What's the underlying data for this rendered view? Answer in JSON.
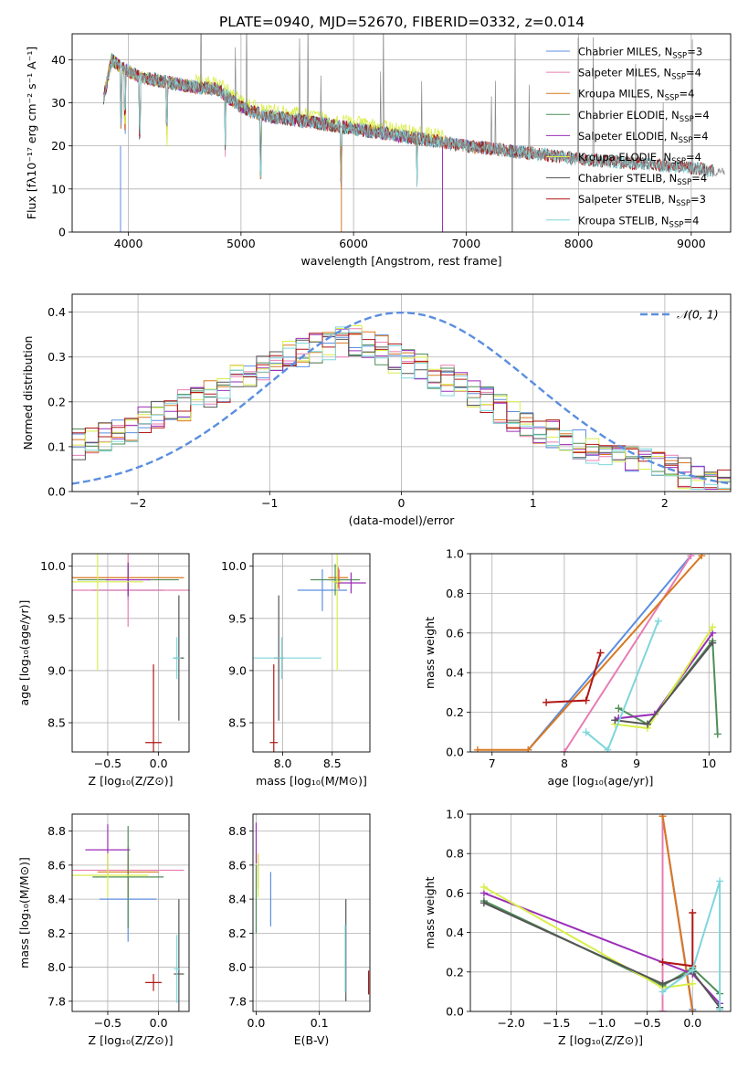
{
  "figure": {
    "title": "PLATE=0940, MJD=52670, FIBERID=0332, z=0.014"
  },
  "models": [
    {
      "name": "Chabrier MILES",
      "nssp": "3",
      "color": "#5b8ee0"
    },
    {
      "name": "Salpeter MILES",
      "nssp": "4",
      "color": "#e87db3"
    },
    {
      "name": "Kroupa MILES",
      "nssp": "4",
      "color": "#d9781f"
    },
    {
      "name": "Chabrier ELODIE",
      "nssp": "4",
      "color": "#4e8e57"
    },
    {
      "name": "Salpeter ELODIE",
      "nssp": "4",
      "color": "#9a2fb8"
    },
    {
      "name": "Kroupa ELODIE",
      "nssp": "4",
      "color": "#d9ee4a"
    },
    {
      "name": "Chabrier STELIB",
      "nssp": "4",
      "color": "#555555"
    },
    {
      "name": "Salpeter STELIB",
      "nssp": "3",
      "color": "#b01717"
    },
    {
      "name": "Kroupa STELIB",
      "nssp": "4",
      "color": "#7fd6dc"
    }
  ],
  "chart_data": [
    {
      "id": "spectrum",
      "type": "line",
      "xlabel": "wavelength [Angstrom, rest frame]",
      "ylabel": "Flux [fλ10⁻¹⁷ erg cm⁻² s⁻¹ A⁻¹]",
      "xlim": [
        3500,
        9350
      ],
      "ylim": [
        0,
        46
      ],
      "xticks": [
        4000,
        5000,
        6000,
        7000,
        8000,
        9000
      ],
      "yticks": [
        0,
        10,
        20,
        30,
        40
      ],
      "legend": "top-right",
      "observed": {
        "x": [
          3780,
          3850,
          3950,
          4100,
          4300,
          4500,
          4800,
          5000,
          5200,
          5500,
          6000,
          6500,
          7000,
          7500,
          8000,
          8500,
          9000,
          9200
        ],
        "y": [
          31,
          40,
          38,
          36,
          35,
          34,
          33,
          29,
          27,
          26,
          24,
          22,
          20,
          18.5,
          17,
          16,
          15,
          14
        ]
      }
    },
    {
      "id": "residuals",
      "type": "line",
      "xlabel": "(data-model)/error",
      "ylabel": "Normed distribution",
      "xlim": [
        -2.5,
        2.5
      ],
      "ylim": [
        0,
        0.44
      ],
      "xticks": [
        -2,
        -1,
        0,
        1,
        2
      ],
      "yticks": [
        0.0,
        0.1,
        0.2,
        0.3,
        0.4
      ],
      "reference": "𝒩(0, 1)",
      "hist_profile": {
        "x": [
          -2.5,
          -2.0,
          -1.5,
          -1.0,
          -0.5,
          -0.3,
          0.0,
          0.5,
          1.0,
          1.5,
          2.0,
          2.5
        ],
        "y": [
          0.1,
          0.15,
          0.21,
          0.29,
          0.33,
          0.34,
          0.29,
          0.23,
          0.14,
          0.09,
          0.05,
          0.02
        ]
      }
    },
    {
      "id": "age_vs_Z",
      "type": "scatter",
      "xlabel": "Z [log₁₀(Z/Z⊙)]",
      "ylabel": "age  [log₁₀(age/yr)]",
      "xlim": [
        -0.85,
        0.3
      ],
      "ylim": [
        8.22,
        10.12
      ],
      "xticks": [
        -0.5,
        0.0
      ],
      "yticks": [
        8.5,
        9.0,
        9.5,
        10.0
      ],
      "points": [
        {
          "x": -0.3,
          "y": 9.77,
          "xerr": 0.35,
          "yerr": 0.1
        },
        {
          "x": -0.3,
          "y": 9.77,
          "xerr": 0.6,
          "yerr": 0.35
        },
        {
          "x": -0.3,
          "y": 9.89,
          "xerr": 0.55,
          "yerr": 0.15
        },
        {
          "x": -0.3,
          "y": 9.87,
          "xerr": 0.5,
          "yerr": 0.15
        },
        {
          "x": -0.3,
          "y": 9.87,
          "xerr": 0.22,
          "yerr": 0.16
        },
        {
          "x": -0.6,
          "y": 9.85,
          "xerr": 0.45,
          "yerr": 0.85
        },
        {
          "x": 0.2,
          "y": 9.12,
          "xerr": 0.05,
          "yerr": 0.6
        },
        {
          "x": -0.05,
          "y": 8.31,
          "xerr": 0.08,
          "yerr": 0.75
        },
        {
          "x": 0.18,
          "y": 9.12,
          "xerr": 0.04,
          "yerr": 0.2
        }
      ]
    },
    {
      "id": "age_vs_mass",
      "type": "scatter",
      "xlabel": "mass [log₁₀(M/M⊙)]",
      "ylabel": "",
      "xlim": [
        7.7,
        8.88
      ],
      "ylim": [
        8.22,
        10.12
      ],
      "xticks": [
        8.0,
        8.5
      ],
      "yticks": [
        8.5,
        9.0,
        9.5,
        10.0
      ],
      "points": [
        {
          "x": 8.4,
          "y": 9.77,
          "xerr": 0.25,
          "yerr": 0.2
        },
        {
          "x": 8.57,
          "y": 9.87,
          "xerr": 0.12,
          "yerr": 0.1
        },
        {
          "x": 8.56,
          "y": 9.89,
          "xerr": 0.1,
          "yerr": 0.1
        },
        {
          "x": 8.53,
          "y": 9.87,
          "xerr": 0.25,
          "yerr": 0.15
        },
        {
          "x": 8.69,
          "y": 9.84,
          "xerr": 0.15,
          "yerr": 0.1
        },
        {
          "x": 8.55,
          "y": 9.85,
          "xerr": 0.05,
          "yerr": 0.85
        },
        {
          "x": 7.96,
          "y": 9.12,
          "xerr": 0.05,
          "yerr": 0.6
        },
        {
          "x": 7.91,
          "y": 8.31,
          "xerr": 0.04,
          "yerr": 0.75
        },
        {
          "x": 7.99,
          "y": 9.12,
          "xerr": 0.4,
          "yerr": 0.2
        }
      ]
    },
    {
      "id": "massweight_vs_age",
      "type": "line",
      "xlabel": "age  [log₁₀(age/yr)]",
      "ylabel": "mass weight",
      "xlim": [
        6.7,
        10.3
      ],
      "ylim": [
        0.0,
        1.0
      ],
      "xticks": [
        7,
        8,
        9,
        10
      ],
      "yticks": [
        0.0,
        0.2,
        0.4,
        0.6,
        0.8,
        1.0
      ],
      "series": [
        {
          "x": [
            7.5,
            9.75
          ],
          "y": [
            0.01,
            0.99
          ]
        },
        {
          "x": [
            8.0,
            9.75
          ],
          "y": [
            0.0,
            0.99
          ]
        },
        {
          "x": [
            6.8,
            7.5,
            9.9
          ],
          "y": [
            0.01,
            0.01,
            0.99
          ]
        },
        {
          "x": [
            8.75,
            9.15,
            10.05,
            10.12
          ],
          "y": [
            0.22,
            0.14,
            0.56,
            0.09
          ]
        },
        {
          "x": [
            8.7,
            8.75,
            9.25,
            10.05
          ],
          "y": [
            0.16,
            0.17,
            0.19,
            0.6
          ]
        },
        {
          "x": [
            8.7,
            9.15,
            10.05
          ],
          "y": [
            0.14,
            0.12,
            0.63
          ]
        },
        {
          "x": [
            8.7,
            9.15,
            10.05
          ],
          "y": [
            0.16,
            0.14,
            0.55
          ]
        },
        {
          "x": [
            7.75,
            8.3,
            8.5
          ],
          "y": [
            0.25,
            0.26,
            0.5
          ]
        },
        {
          "x": [
            8.3,
            8.6,
            9.3
          ],
          "y": [
            0.1,
            0.01,
            0.66
          ]
        }
      ]
    },
    {
      "id": "mass_vs_Z",
      "type": "scatter",
      "xlabel": "Z [log₁₀(Z/Z⊙)]",
      "ylabel": "mass [log₁₀(M/M⊙)]",
      "xlim": [
        -0.85,
        0.3
      ],
      "ylim": [
        7.74,
        8.9
      ],
      "xticks": [
        -0.5,
        0.0
      ],
      "yticks": [
        7.8,
        8.0,
        8.2,
        8.4,
        8.6,
        8.8
      ],
      "points": [
        {
          "x": -0.3,
          "y": 8.4,
          "xerr": 0.28,
          "yerr": 0.25
        },
        {
          "x": -0.3,
          "y": 8.57,
          "xerr": 0.55,
          "yerr": 0.1
        },
        {
          "x": -0.3,
          "y": 8.56,
          "xerr": 0.3,
          "yerr": 0.15
        },
        {
          "x": -0.3,
          "y": 8.53,
          "xerr": 0.35,
          "yerr": 0.3
        },
        {
          "x": -0.5,
          "y": 8.69,
          "xerr": 0.22,
          "yerr": 0.15
        },
        {
          "x": -0.5,
          "y": 8.54,
          "xerr": 0.4,
          "yerr": 0.13
        },
        {
          "x": 0.2,
          "y": 7.96,
          "xerr": 0.05,
          "yerr": 0.44
        },
        {
          "x": -0.05,
          "y": 7.91,
          "xerr": 0.08,
          "yerr": 0.05
        },
        {
          "x": 0.18,
          "y": 7.99,
          "xerr": 0.03,
          "yerr": 0.2
        }
      ]
    },
    {
      "id": "mass_vs_ebv",
      "type": "scatter",
      "xlabel": "E(B-V)",
      "ylabel": "",
      "xlim": [
        -0.005,
        0.18
      ],
      "ylim": [
        7.74,
        8.9
      ],
      "xticks": [
        0.0,
        0.1
      ],
      "yticks": [
        7.8,
        8.0,
        8.2,
        8.4,
        8.6,
        8.8
      ],
      "points": [
        {
          "x": 0.023,
          "y": 8.4,
          "xerr": 0.0,
          "yerr": 0.16
        },
        {
          "x": 0.003,
          "y": 8.57,
          "xerr": 0.0,
          "yerr": 0.1
        },
        {
          "x": 0.003,
          "y": 8.56,
          "xerr": 0.0,
          "yerr": 0.1
        },
        {
          "x": 0.0,
          "y": 8.4,
          "xerr": 0.0,
          "yerr": 0.2
        },
        {
          "x": 0.0,
          "y": 8.73,
          "xerr": 0.0,
          "yerr": 0.12
        },
        {
          "x": 0.003,
          "y": 8.54,
          "xerr": 0.0,
          "yerr": 0.13
        },
        {
          "x": 0.142,
          "y": 8.1,
          "xerr": 0.0,
          "yerr": 0.3
        },
        {
          "x": 0.178,
          "y": 7.91,
          "xerr": 0.0,
          "yerr": 0.07
        },
        {
          "x": 0.141,
          "y": 8.05,
          "xerr": 0.0,
          "yerr": 0.2
        }
      ]
    },
    {
      "id": "massweight_vs_Z",
      "type": "line",
      "xlabel": "Z [log₁₀(Z/Z⊙)]",
      "ylabel": "mass weight",
      "xlim": [
        -2.45,
        0.42
      ],
      "ylim": [
        0.0,
        1.0
      ],
      "xticks": [
        -2.0,
        -1.5,
        -1.0,
        -0.5,
        0.0
      ],
      "yticks": [
        0.0,
        0.2,
        0.4,
        0.6,
        0.8,
        1.0
      ],
      "series": [
        {
          "x": [
            -0.33,
            -0.33,
            0.0
          ],
          "y": [
            0.0,
            0.99,
            0.01
          ]
        },
        {
          "x": [
            -0.33,
            -0.33,
            0.0
          ],
          "y": [
            0.0,
            0.99,
            0.0
          ]
        },
        {
          "x": [
            -0.33,
            -0.33,
            0.0
          ],
          "y": [
            0.99,
            0.99,
            0.0
          ]
        },
        {
          "x": [
            -2.3,
            -0.33,
            0.0,
            0.3
          ],
          "y": [
            0.56,
            0.13,
            0.22,
            0.09
          ]
        },
        {
          "x": [
            -2.3,
            0.0,
            0.3
          ],
          "y": [
            0.6,
            0.19,
            0.04
          ]
        },
        {
          "x": [
            -2.3,
            -0.33,
            0.0
          ],
          "y": [
            0.63,
            0.12,
            0.14
          ]
        },
        {
          "x": [
            -2.3,
            -0.33,
            0.0,
            0.3
          ],
          "y": [
            0.55,
            0.14,
            0.2,
            0.02
          ]
        },
        {
          "x": [
            -0.33,
            0.0,
            0.0
          ],
          "y": [
            0.25,
            0.23,
            0.5
          ]
        },
        {
          "x": [
            -0.33,
            0.0,
            0.3,
            0.3
          ],
          "y": [
            0.1,
            0.21,
            0.66,
            0.01
          ]
        }
      ]
    }
  ]
}
